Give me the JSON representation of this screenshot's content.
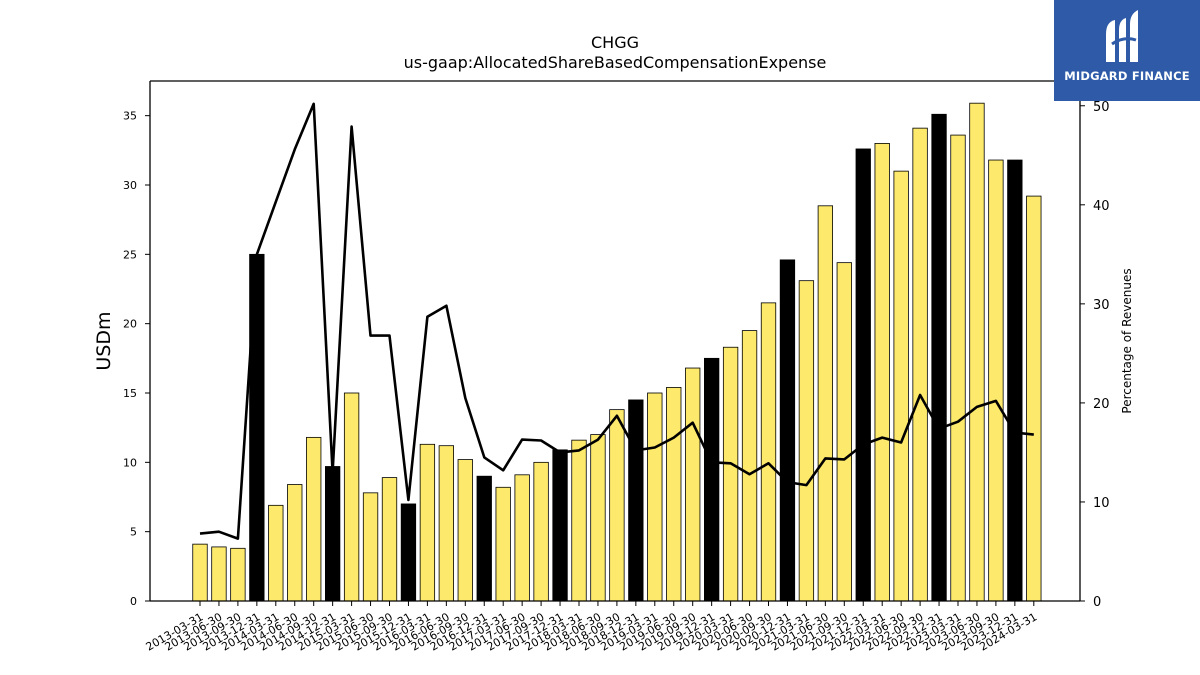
{
  "chart_data": {
    "type": "bar",
    "title": "CHGG",
    "subtitle": "us-gaap:AllocatedShareBasedCompensationExpense",
    "ylabel": "USDm",
    "y2label": "Percentage of Revenues",
    "ylim": [
      0,
      37.5
    ],
    "y2lim": [
      0,
      52.5
    ],
    "yticks": [
      0,
      5,
      10,
      15,
      20,
      25,
      30,
      35
    ],
    "y2ticks": [
      0,
      10,
      20,
      30,
      40,
      50
    ],
    "categories": [
      "2013-03-31",
      "2013-06-30",
      "2013-09-30",
      "2013-12-31",
      "2014-03-31",
      "2014-06-30",
      "2014-09-30",
      "2014-12-31",
      "2015-03-31",
      "2015-06-30",
      "2015-09-30",
      "2015-12-31",
      "2016-03-31",
      "2016-06-30",
      "2016-09-30",
      "2016-12-31",
      "2017-03-31",
      "2017-06-30",
      "2017-09-30",
      "2017-12-31",
      "2018-03-31",
      "2018-06-30",
      "2018-09-30",
      "2018-12-31",
      "2019-03-31",
      "2019-06-30",
      "2019-09-30",
      "2019-12-31",
      "2020-03-31",
      "2020-06-30",
      "2020-09-30",
      "2020-12-31",
      "2021-03-31",
      "2021-06-30",
      "2021-09-30",
      "2021-12-31",
      "2022-03-31",
      "2022-06-30",
      "2022-09-30",
      "2022-12-31",
      "2023-03-31",
      "2023-06-30",
      "2023-09-30",
      "2023-12-31",
      "2024-03-31"
    ],
    "series": [
      {
        "kind": "bar",
        "axis": "left",
        "values": [
          4.1,
          3.9,
          3.8,
          25.0,
          6.9,
          8.4,
          11.8,
          9.7,
          15.0,
          7.8,
          8.9,
          7.0,
          11.3,
          11.2,
          10.2,
          9.0,
          8.2,
          9.1,
          10.0,
          10.9,
          11.6,
          12.0,
          13.8,
          14.5,
          15.0,
          15.4,
          16.8,
          17.5,
          18.3,
          19.5,
          21.5,
          24.6,
          23.1,
          28.5,
          24.4,
          32.6,
          33.0,
          31.0,
          34.1,
          35.1,
          33.6,
          35.9,
          31.8,
          31.8,
          29.2
        ],
        "highlight": [
          false,
          false,
          false,
          true,
          false,
          false,
          false,
          true,
          false,
          false,
          false,
          true,
          false,
          false,
          false,
          true,
          false,
          false,
          false,
          true,
          false,
          false,
          false,
          true,
          false,
          false,
          false,
          true,
          false,
          false,
          false,
          true,
          false,
          false,
          false,
          true,
          false,
          false,
          false,
          true,
          false,
          false,
          false,
          true,
          false
        ]
      },
      {
        "kind": "line",
        "axis": "right",
        "values": [
          6.8,
          7.0,
          6.3,
          35.0,
          40.3,
          45.6,
          50.2,
          13.0,
          47.9,
          26.8,
          26.8,
          10.2,
          28.7,
          29.8,
          20.5,
          14.5,
          13.2,
          16.3,
          16.2,
          15.0,
          15.2,
          16.3,
          18.7,
          15.2,
          15.5,
          16.5,
          18.0,
          14.0,
          13.9,
          12.8,
          13.9,
          12.0,
          11.7,
          14.4,
          14.3,
          15.8,
          16.5,
          16.0,
          20.8,
          17.4,
          18.1,
          19.6,
          20.2,
          17.0,
          16.8
        ]
      }
    ],
    "colors": {
      "bar": "#fde96c",
      "bar_highlight": "#000000",
      "line": "#000000",
      "edge": "#000000"
    },
    "grid": false
  },
  "logo": {
    "text": "MIDGARD FINANCE",
    "background": "#2e5aa8"
  }
}
